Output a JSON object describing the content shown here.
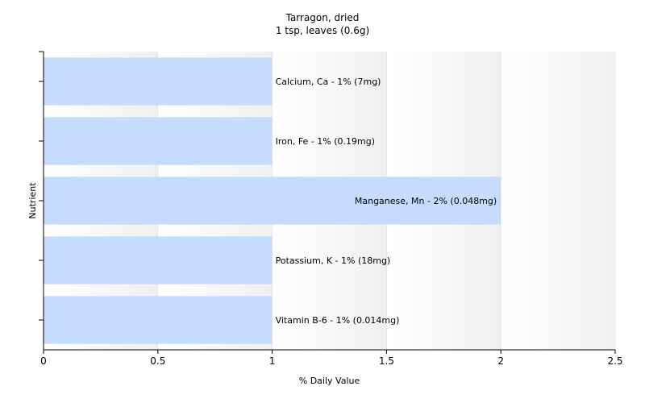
{
  "chart_data": {
    "type": "bar",
    "orientation": "horizontal",
    "title": "Tarragon, dried",
    "subtitle": "1 tsp, leaves (0.6g)",
    "xlabel": "% Daily Value",
    "ylabel": "Nutrient",
    "xlim": [
      0,
      2.5
    ],
    "xticks": [
      "0",
      "0.5",
      "1",
      "1.5",
      "2",
      "2.5"
    ],
    "grid": true,
    "categories": [
      "Calcium, Ca",
      "Iron, Fe",
      "Manganese, Mn",
      "Potassium, K",
      "Vitamin B-6"
    ],
    "values": [
      1,
      1,
      2,
      1,
      1
    ],
    "bar_labels": [
      "Calcium, Ca - 1% (7mg)",
      "Iron, Fe - 1% (0.19mg)",
      "Manganese, Mn - 2% (0.048mg)",
      "Potassium, K - 1% (18mg)",
      "Vitamin B-6 - 1% (0.014mg)"
    ],
    "bar_color": "#c6dcfd"
  }
}
